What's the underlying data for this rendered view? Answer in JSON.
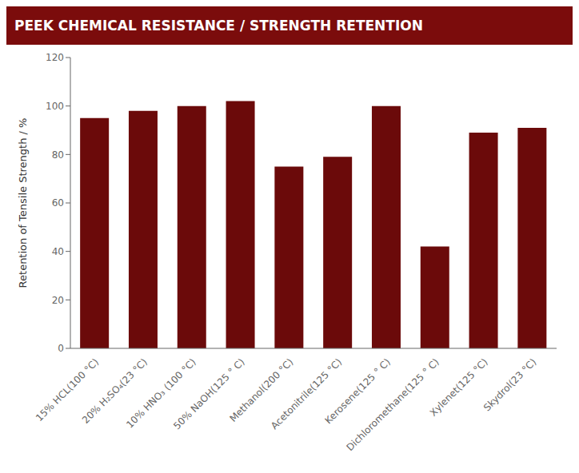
{
  "chart_data": {
    "type": "bar",
    "title": "PEEK CHEMICAL RESISTANCE / STRENGTH RETENTION",
    "ylabel": "Retention of Tensile Strength / %",
    "categories": [
      "15% HCL(100 °C)",
      "20% H₂SO₄(23 °C)",
      "10% HNO₃ (100 °C)",
      "50% NaOH(125 ° C)",
      "Methanol(200 °C)",
      "Acetonitrile(125 °C)",
      "Kerosene(125 ° C)",
      "Dichloromethane(125 ° C)",
      "Xylenet(125 °C)",
      "Skydrol(23 °C)"
    ],
    "values": [
      95,
      98,
      100,
      102,
      75,
      79,
      100,
      42,
      89,
      91
    ],
    "color": "#6B0A0A",
    "ylim": [
      0,
      120
    ],
    "yticks": [
      0,
      20,
      40,
      60,
      80,
      100,
      120
    ],
    "grid": false
  }
}
